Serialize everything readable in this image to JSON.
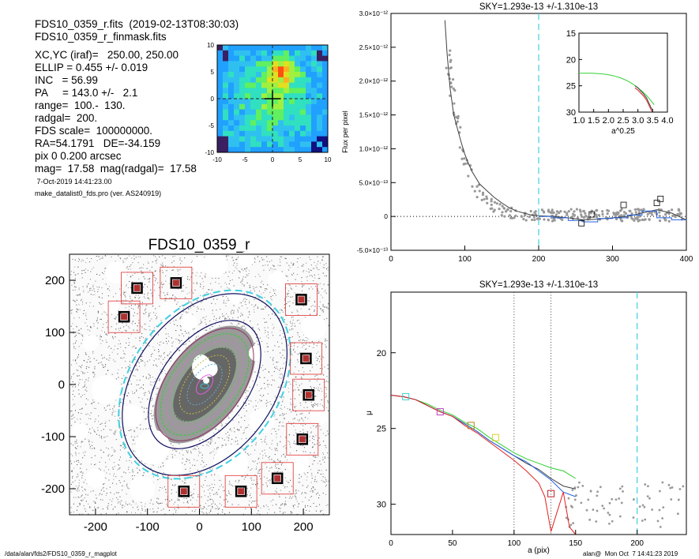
{
  "header": {
    "line1": "FDS10_0359_r.fits  (2019-02-13T08:30:03)",
    "line2": "FDS10_0359_r_finmask.fits",
    "params": [
      "XC,YC (iraf)=   250.00, 250.00",
      "ELLIP = 0.455 +/- 0.019",
      "INC   = 56.99",
      "PA     = 143.0 +/-   2.1",
      "range=  100.-  130.",
      "radgal=  200.",
      "FDS scale=  100000000.",
      "RA=54.1791   DE=-34.159",
      "pix 0 0.200 arcsec",
      "mag=  17.58  mag(radgal)=  17.58"
    ],
    "date": " 7-Oct-2019 14:41:23.00",
    "program": "make_datalist0_fds.pro (ver. AS240919)"
  },
  "footer": {
    "path": "/data/alan/fds2/FDS10_0359_r_magplot",
    "user": "alan@  Mon Oct  7 14:41:23 2019"
  },
  "colors": {
    "mask_box": "#e03030",
    "dashed_cyan": "#40d0e0",
    "blue_line": "#2060e0",
    "green_line": "#30d030",
    "red_line": "#e02020",
    "black_line": "#404040"
  },
  "chart_data": [
    {
      "type": "heatmap",
      "title": "",
      "xlim": [
        -10,
        10
      ],
      "ylim": [
        -10,
        10
      ],
      "xticks": [
        "-10",
        "-5",
        "0",
        "5",
        "10"
      ],
      "yticks": [
        "10",
        "5",
        "0",
        "-5",
        "-10"
      ],
      "peak": [
        1.5,
        5
      ]
    },
    {
      "type": "scatter",
      "title": "FDS10_0359_r",
      "xlim": [
        -250,
        250
      ],
      "ylim": [
        -250,
        250
      ],
      "xticks": [
        "-200",
        "-100",
        "0",
        "100",
        "200"
      ],
      "yticks": [
        "200",
        "100",
        "0",
        "-100",
        "-200"
      ],
      "ellipse": {
        "ellip": 0.455,
        "pa": 143.0,
        "radgal": 200
      },
      "masked_stars": [
        [
          -45,
          195
        ],
        [
          -120,
          185
        ],
        [
          -145,
          130
        ],
        [
          196,
          163
        ],
        [
          205,
          50
        ],
        [
          210,
          -20
        ],
        [
          198,
          -105
        ],
        [
          150,
          -180
        ],
        [
          -30,
          -205
        ],
        [
          80,
          -205
        ]
      ]
    },
    {
      "type": "line",
      "title": "SKY=1.293e-13 +/-1.310e-13",
      "xlabel": "",
      "ylabel": "Flux per pixel",
      "xlim": [
        0,
        400
      ],
      "ylim": [
        -5e-13,
        3e-12
      ],
      "xticks": [
        "0",
        "100",
        "200",
        "300",
        "400"
      ],
      "yticks": [
        "3.0×10⁻¹²",
        "2.5×10⁻¹²",
        "2.0×10⁻¹²",
        "1.5×10⁻¹²",
        "1.0×10⁻¹²",
        "5.0×10⁻¹³",
        "0",
        "-5.0×10⁻¹³"
      ],
      "vline": 200,
      "profile_x": [
        73,
        76,
        80,
        85,
        90,
        95,
        100,
        105,
        110,
        120,
        130,
        140,
        150,
        160,
        170,
        180,
        190,
        200,
        220,
        240,
        260,
        280,
        300,
        320,
        340,
        360,
        380,
        400
      ],
      "profile_y": [
        2.9e-12,
        2.4e-12,
        1.9e-12,
        1.5e-12,
        1.3e-12,
        1.1e-12,
        9.2e-13,
        7.8e-13,
        6.6e-13,
        4.8e-13,
        3.8e-13,
        2.8e-13,
        2e-13,
        1.3e-13,
        8e-14,
        5e-14,
        2e-14,
        1e-14,
        0.0,
        -2e-14,
        -5e-14,
        -4e-14,
        -2e-14,
        0.0,
        5e-14,
        1e-13,
        5e-14,
        -5e-14
      ],
      "squares": [
        [
          258,
          -1e-13
        ],
        [
          272,
          3e-14
        ],
        [
          315,
          1.7e-13
        ],
        [
          360,
          2e-13
        ],
        [
          365,
          2.6e-13
        ]
      ],
      "inset": {
        "xlabel": "a^0.25",
        "xlim": [
          1.0,
          4.0
        ],
        "ylim": [
          30,
          15
        ],
        "xticks": [
          "1.0",
          "1.5",
          "2.0",
          "2.5",
          "3.0",
          "3.5",
          "4.0"
        ],
        "yticks": [
          "15",
          "20",
          "25",
          "30"
        ]
      }
    },
    {
      "type": "line",
      "title": "SKY=1.293e-13 +/-1.310e-13",
      "xlabel": "a (pix)",
      "ylabel": "μ",
      "xlim": [
        0,
        240
      ],
      "ylim": [
        32,
        16
      ],
      "xticks": [
        "0",
        "50",
        "100",
        "150",
        "200"
      ],
      "yticks": [
        "20",
        "25",
        "30"
      ],
      "vlines_dotted": [
        100,
        130
      ],
      "vline_dashed": 200,
      "series": [
        {
          "color": "black",
          "x": [
            0,
            10,
            20,
            30,
            40,
            50,
            60,
            70,
            80,
            90,
            100,
            110,
            120,
            130,
            140,
            150
          ],
          "y": [
            22.8,
            22.9,
            23.1,
            23.5,
            23.9,
            24.2,
            24.7,
            25.2,
            25.8,
            26.3,
            26.8,
            27.3,
            27.7,
            28.3,
            28.8,
            29.0
          ]
        },
        {
          "color": "green",
          "x": [
            0,
            10,
            20,
            30,
            40,
            50,
            60,
            70,
            80,
            90,
            100,
            110,
            120,
            130,
            140,
            150
          ],
          "y": [
            22.8,
            22.9,
            23.1,
            23.4,
            23.8,
            24.1,
            24.6,
            25.0,
            25.6,
            26.1,
            26.6,
            27.0,
            27.3,
            27.6,
            27.8,
            28.3
          ]
        },
        {
          "color": "blue",
          "x": [
            0,
            10,
            20,
            30,
            40,
            50,
            60,
            70,
            80,
            90,
            100,
            110,
            120,
            130,
            140,
            150
          ],
          "y": [
            22.8,
            22.9,
            23.1,
            23.5,
            23.9,
            24.2,
            24.7,
            25.2,
            25.8,
            26.3,
            26.8,
            27.2,
            27.8,
            28.4,
            29.2,
            29.5
          ]
        },
        {
          "color": "red",
          "x": [
            0,
            10,
            20,
            30,
            40,
            50,
            60,
            70,
            80,
            90,
            100,
            110,
            120,
            125,
            130,
            135,
            140,
            145,
            150
          ],
          "y": [
            22.8,
            22.9,
            23.1,
            23.5,
            23.9,
            24.2,
            24.8,
            25.3,
            25.9,
            26.5,
            27.1,
            27.8,
            28.6,
            29.5,
            31.8,
            30.5,
            29.2,
            31.5,
            32
          ]
        }
      ],
      "squares": [
        [
          12,
          22.9
        ],
        [
          40,
          23.9
        ],
        [
          65,
          24.8
        ],
        [
          85,
          25.6
        ],
        [
          130,
          29.3
        ]
      ]
    }
  ]
}
